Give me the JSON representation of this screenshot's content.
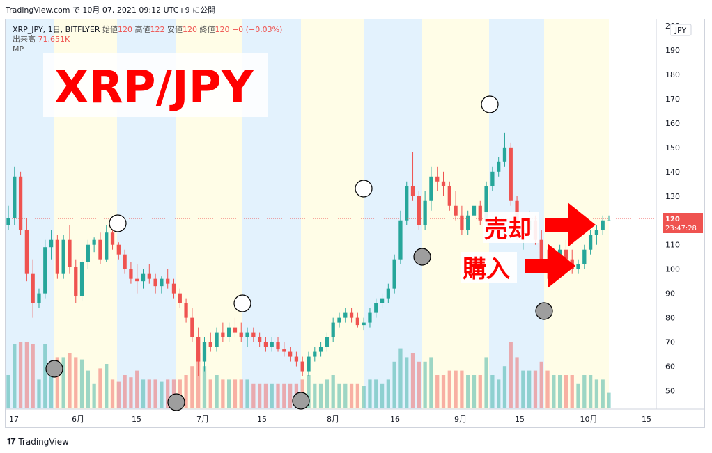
{
  "header": {
    "source_line": "TradingView.com で 10月 07, 2021 09:12 UTC+9 に公開"
  },
  "legend": {
    "symbol": "XRP_JPY, 1日, BITFLYER",
    "o_label": "始値",
    "o": "120",
    "h_label": "高値",
    "h": "122",
    "l_label": "安値",
    "l": "120",
    "c_label": "終値",
    "c": "120",
    "change": "−0 (−0.03%)",
    "volume_label": "出来高",
    "volume": "71.651K",
    "indicator": "MP"
  },
  "footer": {
    "brand": "TradingView"
  },
  "chart_data": {
    "type": "candlestick",
    "title": "XRP/JPY",
    "currency_badge": "JPY",
    "ylim": [
      43,
      202
    ],
    "y_ticks": [
      50,
      60,
      70,
      80,
      90,
      100,
      110,
      120,
      130,
      140,
      150,
      160,
      170,
      180,
      190,
      200
    ],
    "x_ticks": [
      "17",
      "6月",
      "15",
      "7月",
      "15",
      "8月",
      "16",
      "9月",
      "15",
      "10月",
      "15"
    ],
    "last_price_label": {
      "price": "120",
      "countdown": "23:47:28"
    },
    "annotations": [
      {
        "text": "売却"
      },
      {
        "text": "購入"
      }
    ],
    "colors": {
      "up": "#26a69a",
      "down": "#ef5350",
      "price_tag": "#ef5350",
      "band_blue": "#e3f2fd",
      "band_yellow": "#fffde7",
      "annotation": "#ff0000"
    },
    "candles": [
      [
        118,
        126,
        116,
        121
      ],
      [
        121,
        142,
        118,
        138
      ],
      [
        138,
        140,
        114,
        116
      ],
      [
        116,
        121,
        95,
        98
      ],
      [
        98,
        104,
        80,
        86
      ],
      [
        86,
        92,
        84,
        90
      ],
      [
        90,
        112,
        88,
        109
      ],
      [
        109,
        116,
        104,
        112
      ],
      [
        112,
        114,
        96,
        98
      ],
      [
        98,
        114,
        96,
        112
      ],
      [
        112,
        118,
        98,
        101
      ],
      [
        101,
        104,
        86,
        89
      ],
      [
        89,
        104,
        87,
        103
      ],
      [
        103,
        112,
        100,
        110
      ],
      [
        110,
        113,
        107,
        112
      ],
      [
        112,
        115,
        102,
        104
      ],
      [
        104,
        118,
        103,
        115
      ],
      [
        115,
        116,
        108,
        110
      ],
      [
        110,
        111,
        104,
        106
      ],
      [
        106,
        108,
        98,
        100
      ],
      [
        100,
        103,
        94,
        96
      ],
      [
        96,
        102,
        90,
        95
      ],
      [
        95,
        100,
        92,
        98
      ],
      [
        98,
        102,
        94,
        96
      ],
      [
        96,
        98,
        90,
        93
      ],
      [
        93,
        97,
        90,
        96
      ],
      [
        96,
        100,
        92,
        94
      ],
      [
        94,
        96,
        88,
        90
      ],
      [
        90,
        92,
        84,
        86
      ],
      [
        86,
        88,
        78,
        80
      ],
      [
        80,
        84,
        70,
        72
      ],
      [
        72,
        76,
        56,
        62
      ],
      [
        62,
        72,
        58,
        70
      ],
      [
        70,
        74,
        66,
        68
      ],
      [
        68,
        76,
        66,
        74
      ],
      [
        74,
        78,
        70,
        72
      ],
      [
        72,
        78,
        70,
        76
      ],
      [
        76,
        80,
        72,
        74
      ],
      [
        74,
        78,
        70,
        72
      ],
      [
        72,
        76,
        68,
        74
      ],
      [
        74,
        76,
        70,
        72
      ],
      [
        72,
        74,
        68,
        70
      ],
      [
        70,
        72,
        66,
        68
      ],
      [
        68,
        72,
        66,
        70
      ],
      [
        70,
        72,
        66,
        67
      ],
      [
        67,
        70,
        64,
        66
      ],
      [
        66,
        68,
        62,
        64
      ],
      [
        64,
        66,
        60,
        62
      ],
      [
        62,
        64,
        56,
        58
      ],
      [
        58,
        66,
        56,
        64
      ],
      [
        64,
        68,
        62,
        66
      ],
      [
        66,
        70,
        64,
        68
      ],
      [
        68,
        74,
        66,
        72
      ],
      [
        72,
        80,
        70,
        78
      ],
      [
        78,
        82,
        76,
        80
      ],
      [
        80,
        84,
        78,
        82
      ],
      [
        82,
        84,
        78,
        80
      ],
      [
        80,
        82,
        76,
        77
      ],
      [
        77,
        80,
        75,
        78
      ],
      [
        78,
        84,
        76,
        82
      ],
      [
        82,
        88,
        80,
        86
      ],
      [
        86,
        90,
        84,
        88
      ],
      [
        88,
        94,
        86,
        92
      ],
      [
        92,
        106,
        90,
        104
      ],
      [
        104,
        124,
        102,
        120
      ],
      [
        120,
        136,
        118,
        134
      ],
      [
        134,
        148,
        128,
        130
      ],
      [
        130,
        132,
        116,
        118
      ],
      [
        118,
        132,
        116,
        128
      ],
      [
        128,
        142,
        124,
        138
      ],
      [
        138,
        142,
        132,
        136
      ],
      [
        136,
        140,
        130,
        134
      ],
      [
        134,
        136,
        124,
        126
      ],
      [
        126,
        132,
        120,
        122
      ],
      [
        122,
        126,
        114,
        116
      ],
      [
        116,
        124,
        114,
        122
      ],
      [
        122,
        130,
        120,
        126
      ],
      [
        126,
        128,
        118,
        120
      ],
      [
        120,
        136,
        118,
        134
      ],
      [
        134,
        142,
        132,
        140
      ],
      [
        140,
        146,
        138,
        144
      ],
      [
        144,
        156,
        142,
        150
      ],
      [
        150,
        152,
        126,
        128
      ],
      [
        128,
        130,
        112,
        114
      ],
      [
        114,
        120,
        108,
        116
      ],
      [
        116,
        124,
        112,
        120
      ],
      [
        120,
        122,
        110,
        112
      ],
      [
        112,
        116,
        100,
        104
      ],
      [
        104,
        108,
        96,
        100
      ],
      [
        100,
        106,
        96,
        104
      ],
      [
        104,
        110,
        100,
        108
      ],
      [
        108,
        112,
        102,
        104
      ],
      [
        104,
        108,
        98,
        100
      ],
      [
        100,
        104,
        98,
        102
      ],
      [
        102,
        110,
        100,
        108
      ],
      [
        108,
        116,
        106,
        114
      ],
      [
        114,
        118,
        110,
        116
      ],
      [
        116,
        122,
        114,
        120
      ],
      [
        120,
        122,
        120,
        120
      ]
    ]
  }
}
